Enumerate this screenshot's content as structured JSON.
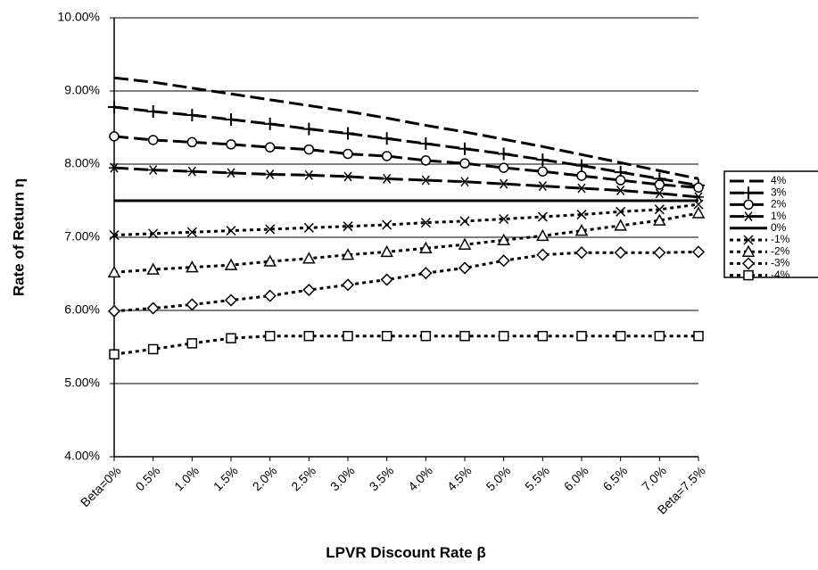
{
  "chart_data": {
    "type": "line",
    "y_label": "Rate of Return η",
    "x_label": "LPVR Discount Rate β",
    "categories": [
      "Beta=0%",
      "0.5%",
      "1.0%",
      "1.5%",
      "2.0%",
      "2.5%",
      "3.0%",
      "3.5%",
      "4.0%",
      "4.5%",
      "5.0%",
      "5.5%",
      "6.0%",
      "6.5%",
      "7.0%",
      "Beta=7.5%"
    ],
    "ylim": [
      4,
      10
    ],
    "yticks": [
      {
        "value": 4,
        "label": "4.00%"
      },
      {
        "value": 5,
        "label": "5.00%"
      },
      {
        "value": 6,
        "label": "6.00%"
      },
      {
        "value": 7,
        "label": "7.00%"
      },
      {
        "value": 8,
        "label": "8.00%"
      },
      {
        "value": 9,
        "label": "9.00%"
      },
      {
        "value": 10,
        "label": "10.00%"
      }
    ],
    "grid": true,
    "legend": "right",
    "series": [
      {
        "name": "4%",
        "color": "#000000",
        "line_style": "dashed",
        "marker": "none",
        "values": [
          9.18,
          9.12,
          9.04,
          8.96,
          8.88,
          8.8,
          8.72,
          8.63,
          8.53,
          8.44,
          8.34,
          8.24,
          8.13,
          8.02,
          7.91,
          7.8
        ]
      },
      {
        "name": "3%",
        "color": "#000000",
        "line_style": "dashed",
        "marker": "plus",
        "values": [
          8.78,
          8.72,
          8.67,
          8.61,
          8.55,
          8.48,
          8.42,
          8.35,
          8.28,
          8.21,
          8.14,
          8.06,
          7.98,
          7.89,
          7.8,
          7.71
        ]
      },
      {
        "name": "2%",
        "color": "#000000",
        "line_style": "dashed",
        "marker": "circle",
        "values": [
          8.38,
          8.33,
          8.3,
          8.27,
          8.23,
          8.2,
          8.14,
          8.11,
          8.05,
          8.01,
          7.95,
          7.9,
          7.84,
          7.78,
          7.72,
          7.68
        ]
      },
      {
        "name": "1%",
        "color": "#000000",
        "line_style": "dashed",
        "marker": "star",
        "values": [
          7.95,
          7.92,
          7.9,
          7.88,
          7.86,
          7.85,
          7.83,
          7.8,
          7.78,
          7.76,
          7.73,
          7.7,
          7.67,
          7.64,
          7.6,
          7.55
        ]
      },
      {
        "name": "0%",
        "color": "#000000",
        "line_style": "solid",
        "marker": "none",
        "values": [
          7.5,
          7.5,
          7.5,
          7.5,
          7.5,
          7.5,
          7.5,
          7.5,
          7.5,
          7.5,
          7.5,
          7.5,
          7.5,
          7.5,
          7.5,
          7.5
        ]
      },
      {
        "name": "-1%",
        "color": "#000000",
        "line_style": "dotted",
        "marker": "x",
        "values": [
          7.03,
          7.05,
          7.07,
          7.09,
          7.11,
          7.13,
          7.15,
          7.17,
          7.2,
          7.22,
          7.25,
          7.28,
          7.31,
          7.35,
          7.38,
          7.45
        ]
      },
      {
        "name": "-2%",
        "color": "#000000",
        "line_style": "dotted",
        "marker": "triangle",
        "values": [
          6.52,
          6.56,
          6.59,
          6.62,
          6.67,
          6.71,
          6.76,
          6.8,
          6.85,
          6.9,
          6.96,
          7.02,
          7.09,
          7.16,
          7.23,
          7.33
        ]
      },
      {
        "name": "-3%",
        "color": "#000000",
        "line_style": "dotted",
        "marker": "diamond",
        "values": [
          5.99,
          6.03,
          6.08,
          6.14,
          6.2,
          6.28,
          6.35,
          6.42,
          6.51,
          6.58,
          6.68,
          6.76,
          6.79,
          6.79,
          6.79,
          6.8
        ]
      },
      {
        "name": "-4%",
        "color": "#000000",
        "line_style": "dotted",
        "marker": "square",
        "values": [
          5.4,
          5.47,
          5.55,
          5.62,
          5.65,
          5.65,
          5.65,
          5.65,
          5.65,
          5.65,
          5.65,
          5.65,
          5.65,
          5.65,
          5.65,
          5.65
        ]
      }
    ]
  }
}
